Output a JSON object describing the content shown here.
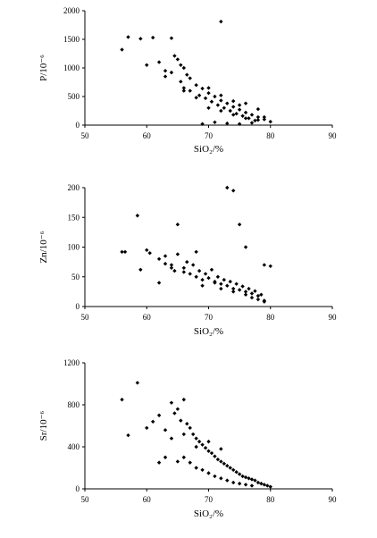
{
  "chart_data": [
    {
      "type": "scatter",
      "title": "",
      "xlabel": "SiO₂/%",
      "ylabel": "P/10⁻⁶",
      "xlim": [
        50,
        90
      ],
      "ylim": [
        0,
        2000
      ],
      "x_ticks": [
        "50",
        "60",
        "70",
        "80",
        "90"
      ],
      "y_ticks": [
        "0",
        "500",
        "1000",
        "1500",
        "2000"
      ],
      "grid": false,
      "series": [
        {
          "x": [
            56,
            57,
            59,
            61,
            64,
            72,
            60,
            62,
            63,
            64.5,
            65,
            65.5,
            66,
            64,
            66.5,
            67,
            65.5,
            68,
            66,
            69,
            67,
            70,
            68.5,
            71,
            69.5,
            72,
            70.5,
            73,
            71.5,
            74,
            72.5,
            75,
            73.5,
            76,
            74.5,
            77,
            75.5,
            78,
            76.5,
            79,
            77.5,
            80,
            63,
            68,
            70,
            72,
            74,
            75,
            76,
            78,
            69,
            71,
            73,
            75,
            77,
            66,
            70,
            72,
            74,
            76,
            78,
            79
          ],
          "y": [
            1320,
            1540,
            1510,
            1530,
            1520,
            1810,
            1050,
            1100,
            950,
            1210,
            1150,
            1050,
            1000,
            920,
            880,
            820,
            760,
            700,
            650,
            640,
            600,
            560,
            520,
            500,
            470,
            430,
            410,
            380,
            350,
            320,
            300,
            270,
            250,
            220,
            200,
            180,
            160,
            140,
            120,
            100,
            80,
            60,
            850,
            480,
            300,
            250,
            180,
            350,
            120,
            90,
            20,
            50,
            30,
            20,
            40,
            600,
            650,
            520,
            420,
            380,
            280,
            140
          ]
        }
      ]
    },
    {
      "type": "scatter",
      "title": "",
      "xlabel": "SiO₂/%",
      "ylabel": "Zn/10⁻⁶",
      "xlim": [
        50,
        90
      ],
      "ylim": [
        0,
        200
      ],
      "x_ticks": [
        "50",
        "60",
        "70",
        "80",
        "90"
      ],
      "y_ticks": [
        "0",
        "50",
        "100",
        "150",
        "200"
      ],
      "grid": false,
      "series": [
        {
          "x": [
            56,
            56.5,
            58.5,
            59,
            60,
            60.5,
            62,
            63,
            64,
            65,
            64.5,
            66,
            66.5,
            67,
            67.5,
            68,
            68.5,
            69,
            69.5,
            70,
            70.5,
            71,
            71.5,
            72,
            72.5,
            73,
            73.5,
            74,
            74.5,
            75,
            75.5,
            76,
            76.5,
            77,
            77.5,
            78,
            78.5,
            79,
            73,
            74,
            75,
            76,
            65,
            68,
            79,
            80,
            62,
            63,
            64,
            66,
            69,
            71,
            72,
            74,
            76,
            77,
            78,
            79
          ],
          "y": [
            92,
            92,
            153,
            62,
            95,
            90,
            80,
            85,
            70,
            138,
            60,
            65,
            75,
            55,
            70,
            50,
            60,
            45,
            55,
            48,
            62,
            42,
            50,
            38,
            45,
            35,
            42,
            30,
            38,
            28,
            34,
            25,
            30,
            22,
            26,
            18,
            20,
            10,
            200,
            195,
            138,
            100,
            88,
            92,
            70,
            68,
            40,
            72,
            65,
            58,
            35,
            40,
            30,
            25,
            20,
            15,
            12,
            8
          ]
        }
      ]
    },
    {
      "type": "scatter",
      "title": "",
      "xlabel": "SiO₂/%",
      "ylabel": "Sr/10⁻⁶",
      "xlim": [
        50,
        90
      ],
      "ylim": [
        0,
        1200
      ],
      "x_ticks": [
        "50",
        "60",
        "70",
        "80",
        "90"
      ],
      "y_ticks": [
        "0",
        "400",
        "800",
        "1200"
      ],
      "grid": false,
      "series": [
        {
          "x": [
            56,
            57,
            58.5,
            60,
            61,
            62,
            63,
            64,
            64.5,
            65,
            65.5,
            66,
            66.5,
            67,
            67.5,
            68,
            68.5,
            69,
            69.5,
            70,
            70.5,
            71,
            71.5,
            72,
            72.5,
            73,
            73.5,
            74,
            74.5,
            75,
            75.5,
            76,
            76.5,
            77,
            77.5,
            78,
            78.5,
            79,
            79.5,
            80,
            62,
            63,
            65,
            66,
            67,
            68,
            69,
            70,
            71,
            72,
            73,
            74,
            75,
            76,
            77,
            64,
            66,
            68,
            70,
            72
          ],
          "y": [
            850,
            510,
            1010,
            580,
            640,
            700,
            560,
            820,
            720,
            760,
            650,
            850,
            620,
            580,
            520,
            480,
            450,
            420,
            390,
            360,
            340,
            310,
            280,
            260,
            240,
            220,
            200,
            180,
            160,
            140,
            120,
            110,
            100,
            90,
            80,
            60,
            50,
            40,
            30,
            20,
            250,
            300,
            260,
            300,
            250,
            200,
            180,
            150,
            120,
            100,
            80,
            60,
            50,
            40,
            30,
            480,
            520,
            400,
            450,
            380
          ]
        }
      ]
    }
  ]
}
